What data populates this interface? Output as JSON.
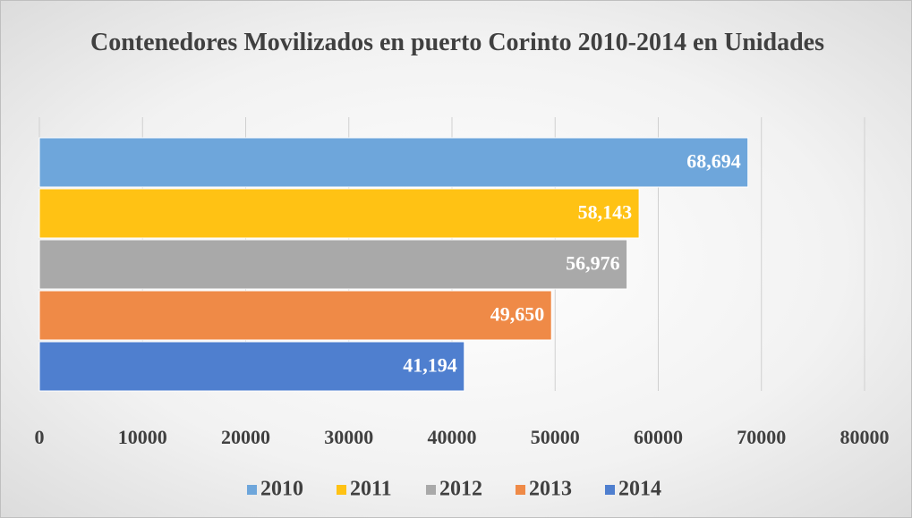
{
  "chart_data": {
    "type": "bar",
    "orientation": "horizontal",
    "title": "Contenedores Movilizados en puerto Corinto 2010-2014 en Unidades",
    "categories": [
      null
    ],
    "series": [
      {
        "name": "2010",
        "color": "#6ea6db",
        "values": [
          68694
        ],
        "value_labels": [
          "68,694"
        ]
      },
      {
        "name": "2011",
        "color": "#ffc214",
        "values": [
          58143
        ],
        "value_labels": [
          "58,143"
        ]
      },
      {
        "name": "2012",
        "color": "#a9a9a9",
        "values": [
          56976
        ],
        "value_labels": [
          "56,976"
        ]
      },
      {
        "name": "2013",
        "color": "#ef8a47",
        "values": [
          49650
        ],
        "value_labels": [
          "49,650"
        ]
      },
      {
        "name": "2014",
        "color": "#4f7fcf",
        "values": [
          41194
        ],
        "value_labels": [
          "41,194"
        ]
      }
    ],
    "xlim": [
      0,
      80000
    ],
    "xticks": [
      0,
      10000,
      20000,
      30000,
      40000,
      50000,
      60000,
      70000,
      80000
    ],
    "grid": true,
    "legend": "bottom"
  }
}
